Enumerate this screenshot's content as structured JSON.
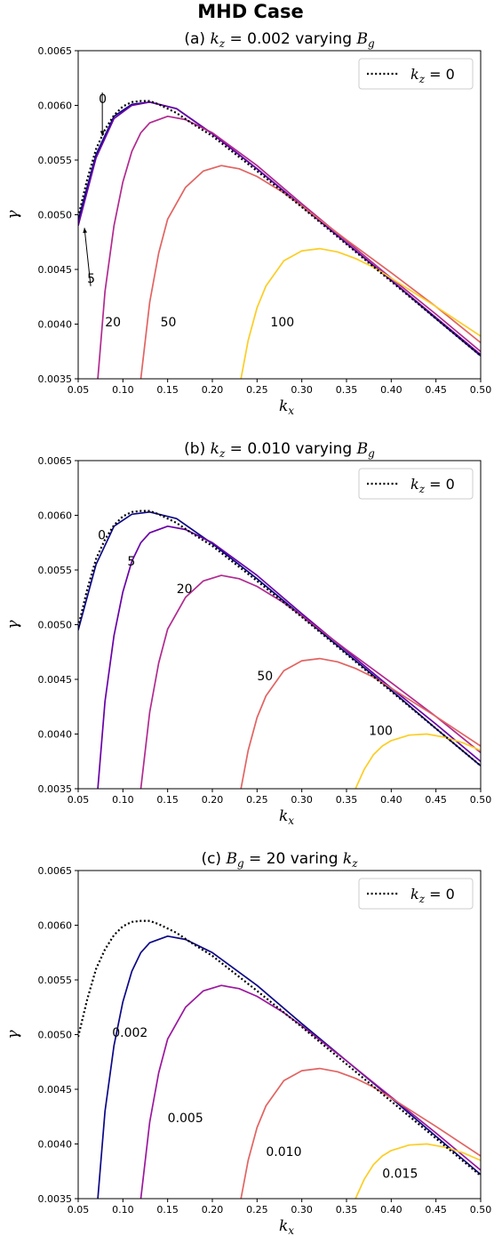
{
  "suptitle": "MHD Case",
  "chart_data": [
    {
      "type": "line",
      "title_prefix": "(a) ",
      "title_math": "k",
      "title_math_sub": "z",
      "title_mid": " = 0.002 varying ",
      "title_math2": "B",
      "title_math2_sub": "g",
      "xlabel": "k",
      "xlabel_sub": "x",
      "ylabel": "γ",
      "xlim": [
        0.05,
        0.5
      ],
      "ylim": [
        0.0035,
        0.0065
      ],
      "xticks": [
        "0.05",
        "0.10",
        "0.15",
        "0.20",
        "0.25",
        "0.30",
        "0.35",
        "0.40",
        "0.45",
        "0.50"
      ],
      "yticks": [
        "0.0035",
        "0.0040",
        "0.0045",
        "0.0050",
        "0.0055",
        "0.0060",
        "0.0065"
      ],
      "legend": {
        "label_math": "k",
        "label_sub": "z",
        "label_rest": " = 0",
        "placement": "top-right",
        "style": "dotted"
      },
      "series": [
        {
          "label": "0",
          "color": "#0d0887",
          "x": [
            0.05,
            0.07,
            0.09,
            0.11,
            0.13,
            0.16,
            0.2,
            0.25,
            0.3,
            0.35,
            0.4,
            0.45,
            0.5
          ],
          "y": [
            0.00495,
            0.00555,
            0.0059,
            0.00601,
            0.00603,
            0.00597,
            0.00574,
            0.00542,
            0.00508,
            0.00474,
            0.0044,
            0.00405,
            0.00371
          ]
        },
        {
          "label": "5",
          "color": "#6a00a8",
          "x": [
            0.05,
            0.07,
            0.09,
            0.11,
            0.13,
            0.16,
            0.2,
            0.25,
            0.3,
            0.35,
            0.4,
            0.45,
            0.5
          ],
          "y": [
            0.0049,
            0.00552,
            0.00588,
            0.006,
            0.00603,
            0.00597,
            0.00574,
            0.00542,
            0.00508,
            0.00474,
            0.0044,
            0.00406,
            0.00372
          ]
        },
        {
          "label": "20",
          "color": "#b12a90",
          "x": [
            0.072,
            0.08,
            0.09,
            0.1,
            0.11,
            0.12,
            0.13,
            0.15,
            0.17,
            0.2,
            0.25,
            0.3,
            0.35,
            0.4,
            0.45,
            0.5
          ],
          "y": [
            0.0035,
            0.0043,
            0.0049,
            0.0053,
            0.00558,
            0.00575,
            0.00584,
            0.0059,
            0.00587,
            0.00575,
            0.00545,
            0.0051,
            0.00476,
            0.00442,
            0.00409,
            0.00375
          ]
        },
        {
          "label": "50",
          "color": "#e16462",
          "x": [
            0.12,
            0.13,
            0.14,
            0.15,
            0.17,
            0.19,
            0.21,
            0.23,
            0.25,
            0.28,
            0.3,
            0.35,
            0.4,
            0.45,
            0.5
          ],
          "y": [
            0.0035,
            0.0042,
            0.00465,
            0.00496,
            0.00525,
            0.0054,
            0.00545,
            0.00542,
            0.00535,
            0.0052,
            0.00508,
            0.00477,
            0.00447,
            0.00416,
            0.00383
          ]
        },
        {
          "label": "100",
          "color": "#fccd25",
          "x": [
            0.232,
            0.24,
            0.25,
            0.26,
            0.28,
            0.3,
            0.32,
            0.34,
            0.36,
            0.38,
            0.4,
            0.45,
            0.5
          ],
          "y": [
            0.0035,
            0.00385,
            0.00415,
            0.00435,
            0.00458,
            0.00467,
            0.00469,
            0.00466,
            0.0046,
            0.00452,
            0.00442,
            0.00416,
            0.00389
          ]
        }
      ],
      "labels": [
        {
          "text": "0",
          "x": 0.073,
          "y": 0.00602,
          "arrow_to": [
            0.077,
            0.00572
          ]
        },
        {
          "text": "5",
          "x": 0.06,
          "y": 0.00438,
          "arrow_to": [
            0.057,
            0.00488
          ]
        },
        {
          "text": "20",
          "x": 0.08,
          "y": 0.00398,
          "arrow_to": null
        },
        {
          "text": "50",
          "x": 0.142,
          "y": 0.00398,
          "arrow_to": null
        },
        {
          "text": "100",
          "x": 0.265,
          "y": 0.00398,
          "arrow_to": null
        }
      ]
    },
    {
      "type": "line",
      "title_prefix": "(b) ",
      "title_math": "k",
      "title_math_sub": "z",
      "title_mid": " = 0.010 varying ",
      "title_math2": "B",
      "title_math2_sub": "g",
      "xlabel": "k",
      "xlabel_sub": "x",
      "ylabel": "γ",
      "xlim": [
        0.05,
        0.5
      ],
      "ylim": [
        0.0035,
        0.0065
      ],
      "xticks": [
        "0.05",
        "0.10",
        "0.15",
        "0.20",
        "0.25",
        "0.30",
        "0.35",
        "0.40",
        "0.45",
        "0.50"
      ],
      "yticks": [
        "0.0035",
        "0.0040",
        "0.0045",
        "0.0050",
        "0.0055",
        "0.0060",
        "0.0065"
      ],
      "legend": {
        "label_math": "k",
        "label_sub": "z",
        "label_rest": " = 0",
        "placement": "top-right",
        "style": "dotted"
      },
      "series": [
        {
          "label": "0",
          "color": "#0d0887",
          "x": [
            0.05,
            0.07,
            0.09,
            0.11,
            0.13,
            0.16,
            0.2,
            0.25,
            0.3,
            0.35,
            0.4,
            0.45,
            0.5
          ],
          "y": [
            0.00495,
            0.00555,
            0.0059,
            0.00601,
            0.00603,
            0.00597,
            0.00574,
            0.00542,
            0.00508,
            0.00474,
            0.0044,
            0.00405,
            0.00371
          ]
        },
        {
          "label": "5",
          "color": "#6a00a8",
          "x": [
            0.072,
            0.08,
            0.09,
            0.1,
            0.11,
            0.12,
            0.13,
            0.15,
            0.17,
            0.2,
            0.25,
            0.3,
            0.35,
            0.4,
            0.45,
            0.5
          ],
          "y": [
            0.0035,
            0.0043,
            0.0049,
            0.0053,
            0.00558,
            0.00575,
            0.00584,
            0.0059,
            0.00587,
            0.00575,
            0.00545,
            0.0051,
            0.00476,
            0.00442,
            0.00409,
            0.00375
          ]
        },
        {
          "label": "20",
          "color": "#b12a90",
          "x": [
            0.12,
            0.13,
            0.14,
            0.15,
            0.17,
            0.19,
            0.21,
            0.23,
            0.25,
            0.28,
            0.3,
            0.35,
            0.4,
            0.45,
            0.5
          ],
          "y": [
            0.0035,
            0.0042,
            0.00465,
            0.00496,
            0.00525,
            0.0054,
            0.00545,
            0.00542,
            0.00535,
            0.0052,
            0.00508,
            0.00477,
            0.00447,
            0.00416,
            0.00383
          ]
        },
        {
          "label": "50",
          "color": "#e16462",
          "x": [
            0.232,
            0.24,
            0.25,
            0.26,
            0.28,
            0.3,
            0.32,
            0.34,
            0.36,
            0.38,
            0.4,
            0.45,
            0.5
          ],
          "y": [
            0.0035,
            0.00385,
            0.00415,
            0.00435,
            0.00458,
            0.00467,
            0.00469,
            0.00466,
            0.0046,
            0.00452,
            0.00442,
            0.00416,
            0.00389
          ]
        },
        {
          "label": "100",
          "color": "#fccd25",
          "x": [
            0.36,
            0.37,
            0.38,
            0.39,
            0.4,
            0.42,
            0.44,
            0.46,
            0.48,
            0.5
          ],
          "y": [
            0.0035,
            0.00368,
            0.00381,
            0.00389,
            0.00394,
            0.00399,
            0.004,
            0.00397,
            0.00392,
            0.00385
          ]
        }
      ],
      "labels": [
        {
          "text": "0",
          "x": 0.072,
          "y": 0.00578,
          "arrow_to": null
        },
        {
          "text": "5",
          "x": 0.105,
          "y": 0.00554,
          "arrow_to": null
        },
        {
          "text": "20",
          "x": 0.16,
          "y": 0.00529,
          "arrow_to": null
        },
        {
          "text": "50",
          "x": 0.25,
          "y": 0.00449,
          "arrow_to": null
        },
        {
          "text": "100",
          "x": 0.375,
          "y": 0.00399,
          "arrow_to": null
        }
      ]
    },
    {
      "type": "line",
      "title_prefix": "(c) ",
      "title_math": "B",
      "title_math_sub": "g",
      "title_mid": " = 20 varing ",
      "title_math2": "k",
      "title_math2_sub": "z",
      "xlabel": "k",
      "xlabel_sub": "x",
      "ylabel": "γ",
      "xlim": [
        0.05,
        0.5
      ],
      "ylim": [
        0.0035,
        0.0065
      ],
      "xticks": [
        "0.05",
        "0.10",
        "0.15",
        "0.20",
        "0.25",
        "0.30",
        "0.35",
        "0.40",
        "0.45",
        "0.50"
      ],
      "yticks": [
        "0.0035",
        "0.0040",
        "0.0045",
        "0.0050",
        "0.0055",
        "0.0060",
        "0.0065"
      ],
      "legend": {
        "label_math": "k",
        "label_sub": "z",
        "label_rest": " = 0",
        "placement": "top-right",
        "style": "dotted"
      },
      "series": [
        {
          "label": "0.002",
          "color": "#0d0887",
          "x": [
            0.072,
            0.08,
            0.09,
            0.1,
            0.11,
            0.12,
            0.13,
            0.15,
            0.17,
            0.2,
            0.25,
            0.3,
            0.35,
            0.4,
            0.45,
            0.5
          ],
          "y": [
            0.0035,
            0.0043,
            0.0049,
            0.0053,
            0.00558,
            0.00575,
            0.00584,
            0.0059,
            0.00587,
            0.00575,
            0.00545,
            0.0051,
            0.00476,
            0.00442,
            0.00407,
            0.00372
          ]
        },
        {
          "label": "0.005",
          "color": "#9c179e",
          "x": [
            0.12,
            0.13,
            0.14,
            0.15,
            0.17,
            0.19,
            0.21,
            0.23,
            0.25,
            0.28,
            0.3,
            0.35,
            0.4,
            0.45,
            0.5
          ],
          "y": [
            0.0035,
            0.0042,
            0.00465,
            0.00496,
            0.00525,
            0.0054,
            0.00545,
            0.00542,
            0.00535,
            0.0052,
            0.00508,
            0.00476,
            0.00443,
            0.0041,
            0.00376
          ]
        },
        {
          "label": "0.010",
          "color": "#e16462",
          "x": [
            0.232,
            0.24,
            0.25,
            0.26,
            0.28,
            0.3,
            0.32,
            0.34,
            0.36,
            0.38,
            0.4,
            0.45,
            0.5
          ],
          "y": [
            0.0035,
            0.00385,
            0.00415,
            0.00435,
            0.00458,
            0.00467,
            0.00469,
            0.00466,
            0.0046,
            0.00452,
            0.00442,
            0.00416,
            0.00389
          ]
        },
        {
          "label": "0.015",
          "color": "#fccd25",
          "x": [
            0.36,
            0.37,
            0.38,
            0.39,
            0.4,
            0.42,
            0.44,
            0.46,
            0.48,
            0.5
          ],
          "y": [
            0.0035,
            0.00368,
            0.00381,
            0.00389,
            0.00394,
            0.00399,
            0.004,
            0.00397,
            0.00392,
            0.00385
          ]
        }
      ],
      "labels": [
        {
          "text": "0.002",
          "x": 0.088,
          "y": 0.00498,
          "arrow_to": null
        },
        {
          "text": "0.005",
          "x": 0.15,
          "y": 0.0042,
          "arrow_to": null
        },
        {
          "text": "0.010",
          "x": 0.26,
          "y": 0.00389,
          "arrow_to": null
        },
        {
          "text": "0.015",
          "x": 0.39,
          "y": 0.00369,
          "arrow_to": null
        }
      ]
    }
  ],
  "reference_curve": {
    "x": [
      0.05,
      0.06,
      0.07,
      0.08,
      0.09,
      0.1,
      0.11,
      0.12,
      0.13,
      0.14,
      0.16,
      0.18,
      0.2,
      0.25,
      0.3,
      0.35,
      0.4,
      0.45,
      0.5
    ],
    "y": [
      0.00498,
      0.00532,
      0.0056,
      0.00578,
      0.00591,
      0.00599,
      0.00603,
      0.00604,
      0.00604,
      0.00601,
      0.00593,
      0.00582,
      0.00572,
      0.0054,
      0.00507,
      0.00473,
      0.00439,
      0.00405,
      0.00371
    ]
  }
}
